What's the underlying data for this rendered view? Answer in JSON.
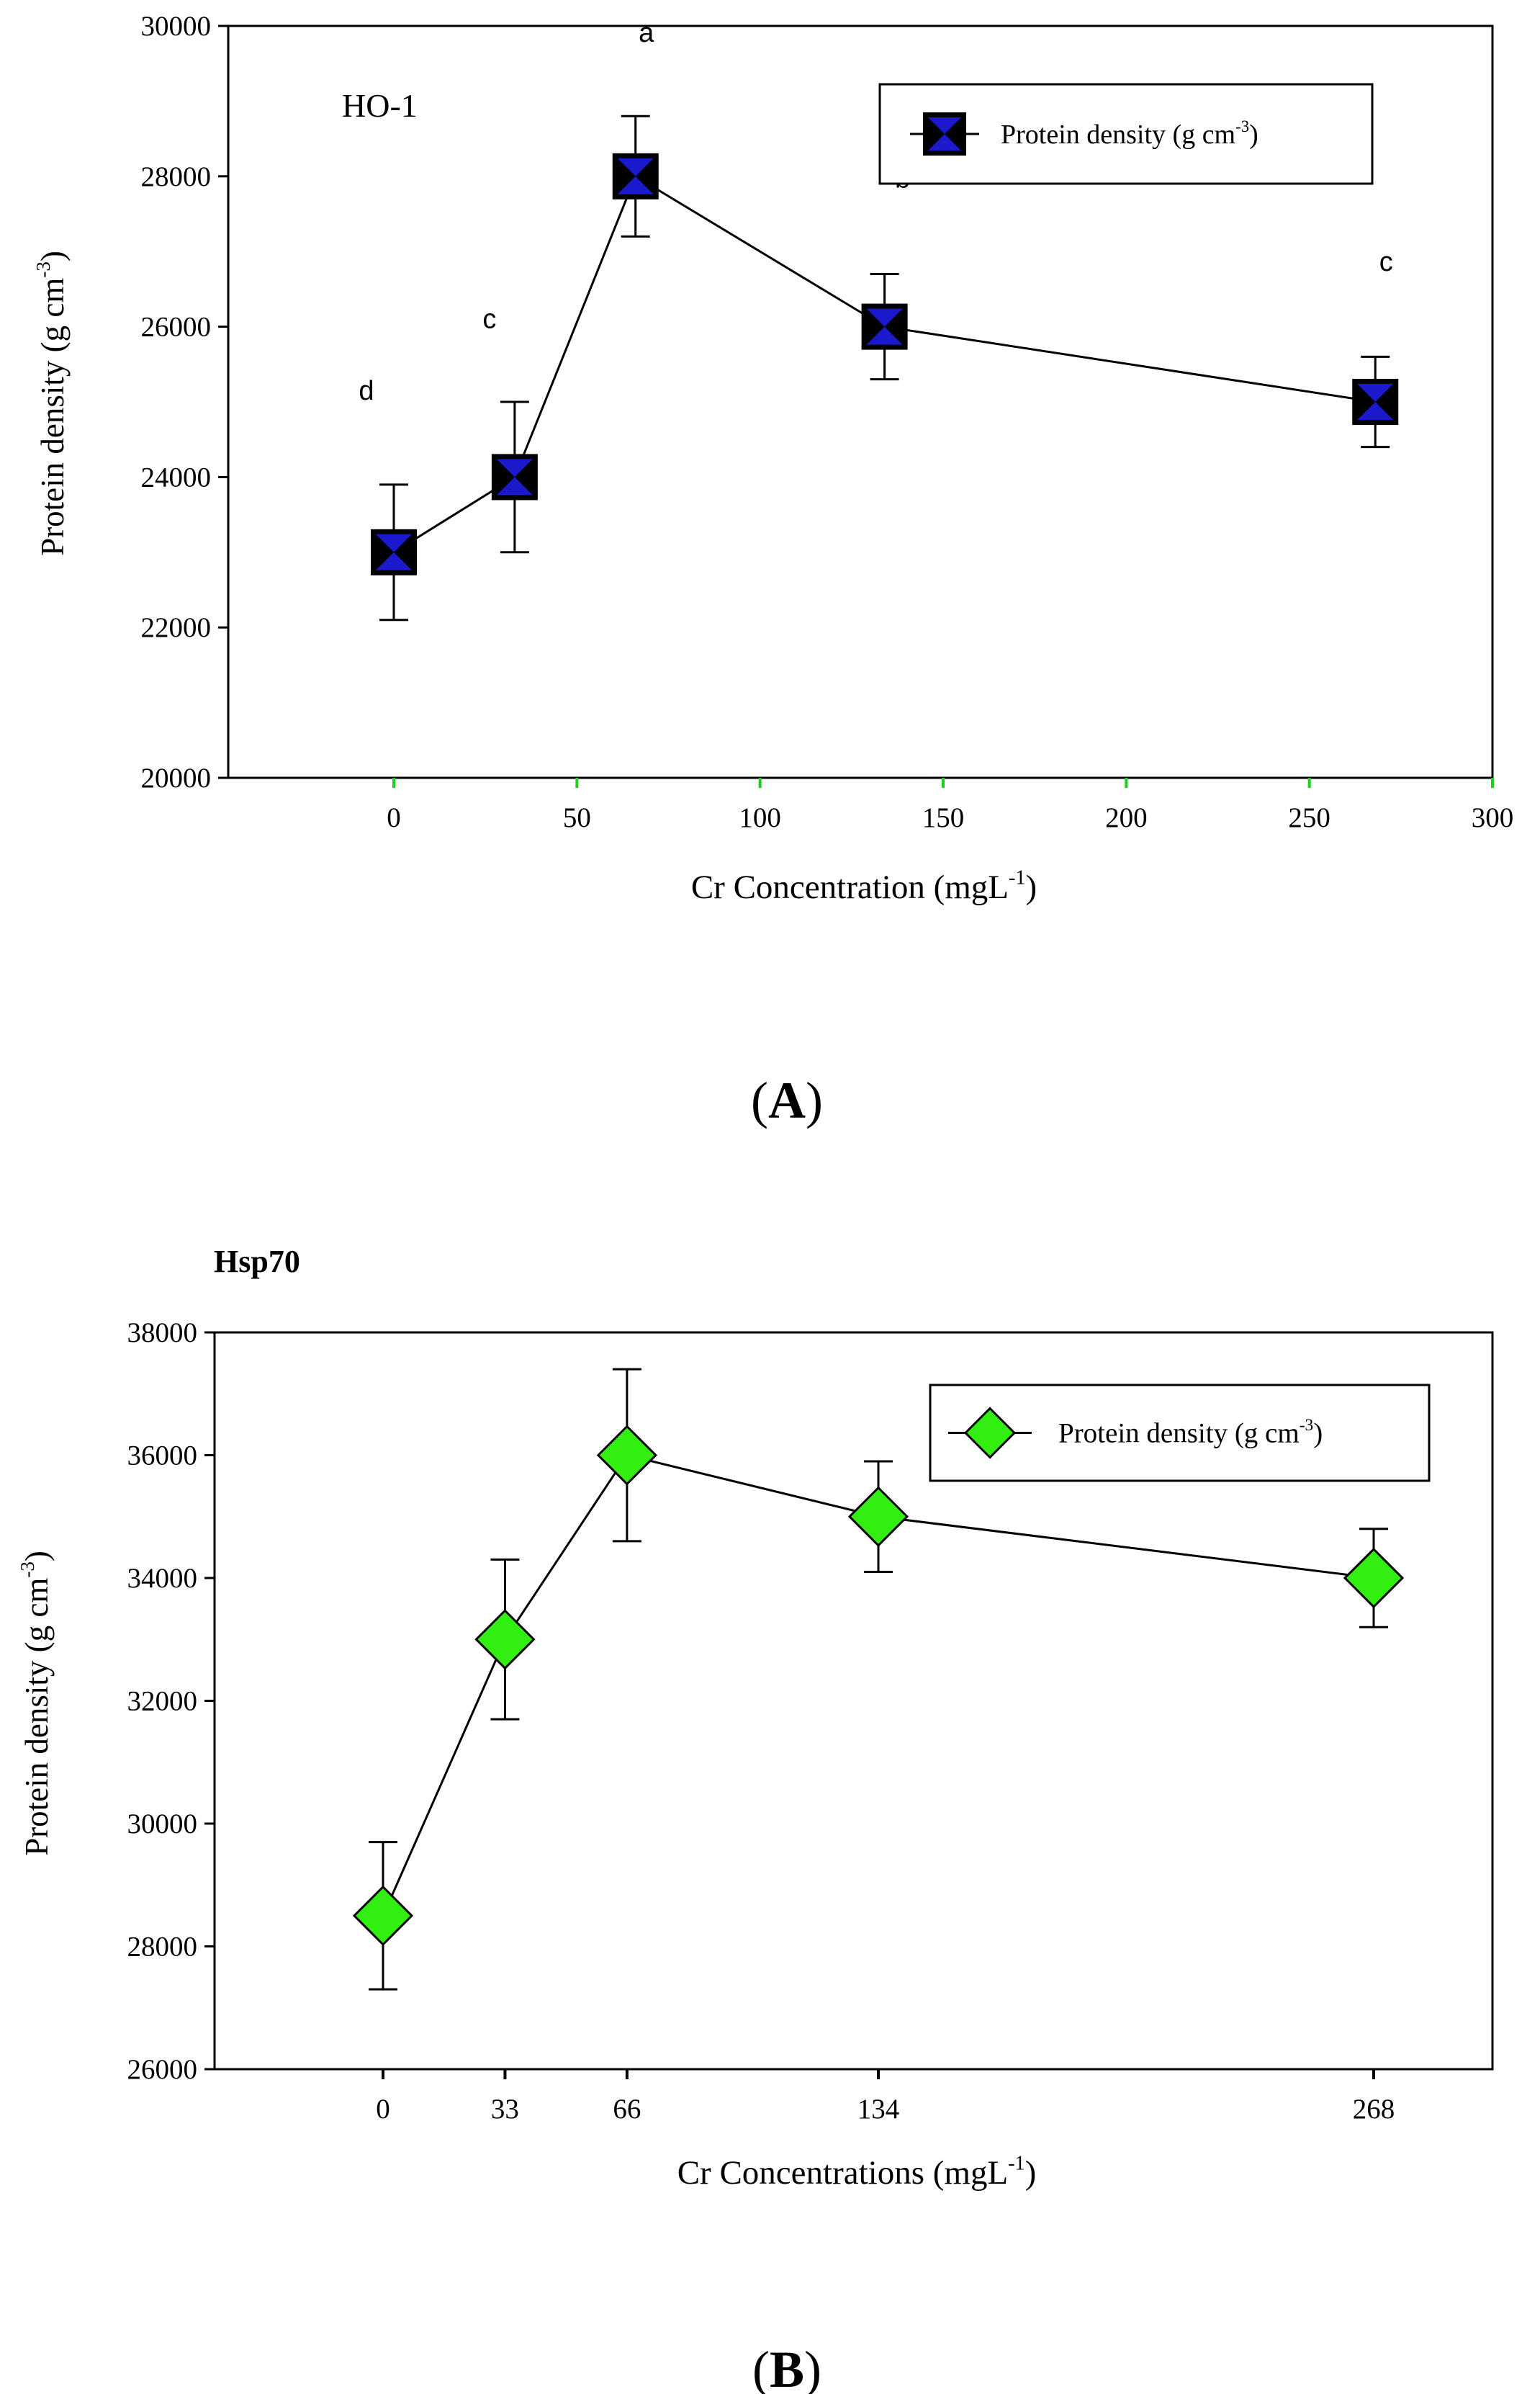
{
  "chart_data": [
    {
      "id": "A",
      "type": "line",
      "panel_label": "(A)",
      "panel_letter": "A",
      "title": "HO-1",
      "xlabel": "Cr Concentration (mgL",
      "xlabel_sup": "-1",
      "xlabel_tail": ")",
      "ylabel": "Protein density (g cm",
      "ylabel_sup": "-3",
      "ylabel_tail": ")",
      "xlim": [
        -45,
        300
      ],
      "ylim": [
        20000,
        30000
      ],
      "xticks": [
        0,
        50,
        100,
        150,
        200,
        250,
        300
      ],
      "yticks": [
        20000,
        22000,
        24000,
        26000,
        28000,
        30000
      ],
      "legend_location": "top-right",
      "marker": "square-hourglass",
      "series": [
        {
          "name": "Protein density (g cm",
          "name_sup": "-3",
          "name_tail": ")",
          "color": "#1a1acc",
          "x": [
            0,
            33,
            66,
            134,
            268
          ],
          "y": [
            23000,
            24000,
            28000,
            26000,
            25000
          ],
          "error": [
            900,
            1000,
            800,
            700,
            600
          ],
          "letters": [
            "d",
            "c",
            "a",
            "b",
            "c"
          ]
        }
      ],
      "tick_color": "#22cc22"
    },
    {
      "id": "B",
      "type": "line",
      "panel_label": "(B)",
      "panel_letter": "B",
      "title": "Hsp70",
      "xlabel": "Cr Concentrations (mgL",
      "xlabel_sup": "-1",
      "xlabel_tail": ")",
      "ylabel": "Protein density (g cm",
      "ylabel_sup": "-3",
      "ylabel_tail": ")",
      "xlim": [
        -45,
        300
      ],
      "ylim": [
        26000,
        38000
      ],
      "xticks": [
        0,
        33,
        66,
        134,
        268
      ],
      "yticks": [
        26000,
        28000,
        30000,
        32000,
        34000,
        36000,
        38000
      ],
      "legend_location": "top-right",
      "marker": "diamond",
      "series": [
        {
          "name": "Protein density (g cm",
          "name_sup": "-3",
          "name_tail": ")",
          "color": "#33ee11",
          "x": [
            0,
            33,
            66,
            134,
            268
          ],
          "y": [
            28500,
            33000,
            36000,
            35000,
            34000
          ],
          "error": [
            1200,
            1300,
            1400,
            900,
            800
          ]
        }
      ]
    }
  ]
}
